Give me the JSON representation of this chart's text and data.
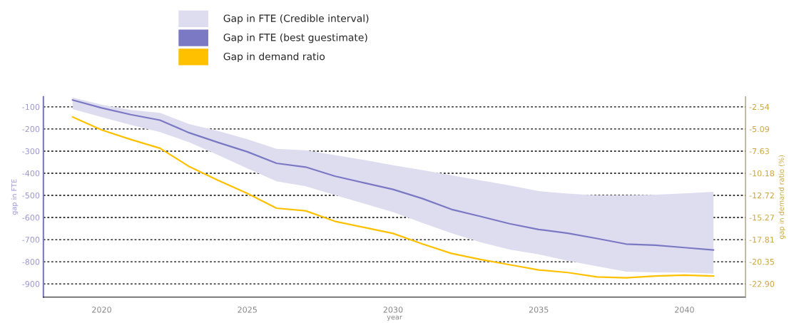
{
  "chart_data": {
    "type": "line",
    "x": [
      2019,
      2020,
      2021,
      2022,
      2023,
      2024,
      2025,
      2026,
      2027,
      2028,
      2029,
      2030,
      2031,
      2032,
      2033,
      2034,
      2035,
      2036,
      2037,
      2038,
      2039,
      2040,
      2041
    ],
    "series": [
      {
        "name": "Gap in FTE (best guestimate)",
        "color": "#7b78c4",
        "values": [
          -69,
          -105,
          -135,
          -160,
          -217,
          -261,
          -303,
          -355,
          -372,
          -413,
          -443,
          -473,
          -514,
          -563,
          -595,
          -628,
          -654,
          -671,
          -695,
          -720,
          -725,
          -736,
          -747
        ],
        "upper": [
          -58,
          -90,
          -114,
          -127,
          -178,
          -209,
          -246,
          -290,
          -296,
          -318,
          -340,
          -364,
          -386,
          -409,
          -432,
          -455,
          -481,
          -492,
          -500,
          -500,
          -497,
          -491,
          -484
        ],
        "lower": [
          -110,
          -146,
          -182,
          -214,
          -260,
          -318,
          -378,
          -436,
          -459,
          -498,
          -537,
          -576,
          -624,
          -671,
          -712,
          -745,
          -767,
          -796,
          -821,
          -845,
          -848,
          -849,
          -854
        ]
      },
      {
        "name": "Gap in demand ratio",
        "color": "#ffc000",
        "axis": "y2",
        "values": [
          -3.7,
          -5.2,
          -6.3,
          -7.3,
          -9.4,
          -11.0,
          -12.5,
          -14.2,
          -14.5,
          -15.7,
          -16.4,
          -17.1,
          -18.3,
          -19.4,
          -20.1,
          -20.7,
          -21.3,
          -21.6,
          -22.1,
          -22.2,
          -22.0,
          -21.9,
          -22.0
        ]
      }
    ],
    "annotations": [
      "Gap in FTE (Credible interval)"
    ],
    "xlabel": "year",
    "ylabel": "gap in FTE",
    "y2label": "gap in demand ratio (%)",
    "xlim": [
      2018,
      2042.1
    ],
    "xticks": [
      2020,
      2025,
      2030,
      2035,
      2040
    ],
    "ylim": [
      -960,
      -55
    ],
    "yticks": [
      -100,
      -200,
      -300,
      -400,
      -500,
      -600,
      -700,
      -800,
      -900
    ],
    "y2lim": [
      -24.43,
      -1.4
    ],
    "y2ticks": [
      -2.54,
      -5.09,
      -7.63,
      -10.18,
      -12.72,
      -15.27,
      -17.81,
      -20.35,
      {
        "value": -22.9,
        "label": "-22.90"
      }
    ],
    "grid": "y",
    "legend": "top",
    "line_style": "solid",
    "marker": "none"
  }
}
